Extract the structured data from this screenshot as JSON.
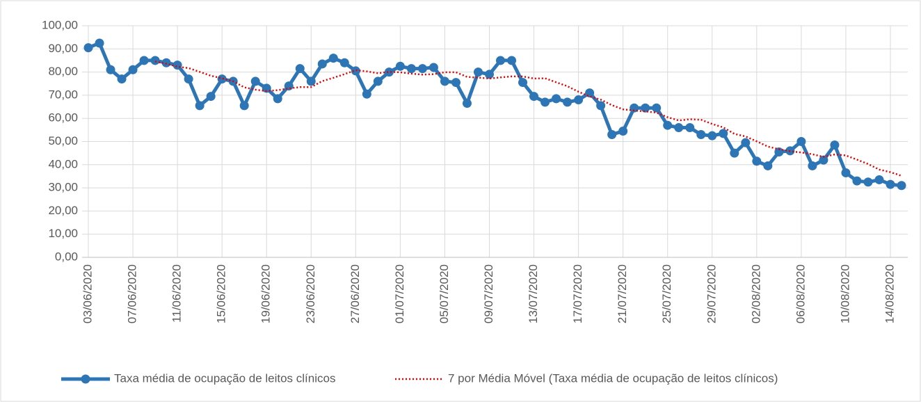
{
  "chart_data": {
    "type": "line",
    "categories": [
      "03/06/2020",
      null,
      null,
      null,
      "07/06/2020",
      null,
      null,
      null,
      "11/06/2020",
      null,
      null,
      null,
      "15/06/2020",
      null,
      null,
      null,
      "19/06/2020",
      null,
      null,
      null,
      "23/06/2020",
      null,
      null,
      null,
      "27/06/2020",
      null,
      null,
      null,
      "01/07/2020",
      null,
      null,
      null,
      "05/07/2020",
      null,
      null,
      null,
      "09/07/2020",
      null,
      null,
      null,
      "13/07/2020",
      null,
      null,
      null,
      "17/07/2020",
      null,
      null,
      null,
      "21/07/2020",
      null,
      null,
      null,
      "25/07/2020",
      null,
      null,
      null,
      "29/07/2020",
      null,
      null,
      null,
      "02/08/2020",
      null,
      null,
      null,
      "06/08/2020",
      null,
      null,
      null,
      "10/08/2020",
      null,
      null,
      null,
      "14/08/2020",
      null
    ],
    "series": [
      {
        "name": "Taxa média de ocupação de leitos clínicos",
        "color": "#2e75b6",
        "values": [
          90.5,
          92.5,
          81,
          77,
          81,
          85,
          85,
          84,
          83,
          77,
          65.5,
          69.5,
          77,
          76,
          65.5,
          76,
          73,
          68.5,
          74,
          81.5,
          76,
          83.5,
          86,
          84,
          80.5,
          70.5,
          76,
          80,
          82.5,
          81.5,
          81.5,
          82,
          76,
          75.5,
          66.5,
          80,
          79,
          85,
          85,
          75.5,
          69.5,
          67,
          68.5,
          67,
          68,
          71,
          65.5,
          53,
          54.5,
          64.5,
          64.5,
          64.5,
          57,
          56,
          56,
          53,
          52.5,
          53.5,
          45,
          49.5,
          41.5,
          39.5,
          45.5,
          46,
          50,
          39.5,
          42,
          48.5,
          36.5,
          33,
          32.5,
          33.5,
          31.5,
          31
        ]
      },
      {
        "name": "7 por Média Móvel (Taxa média de ocupação de leitos clínicos)",
        "color": "#e00000",
        "values": [
          null,
          null,
          null,
          null,
          null,
          null,
          84.6,
          83.6,
          82.3,
          81.7,
          80.1,
          78.4,
          77.3,
          76,
          73.4,
          72.4,
          71.8,
          72.2,
          72.9,
          73.5,
          73.5,
          76.1,
          77.5,
          79.1,
          80.8,
          80.3,
          79.5,
          80.1,
          79.9,
          79.3,
          78.9,
          79.1,
          79.9,
          79.9,
          77.9,
          77.6,
          77.2,
          77.7,
          78.1,
          78.1,
          77.2,
          77.3,
          75.6,
          73.9,
          71.5,
          69.5,
          68.1,
          65.7,
          63.9,
          63.4,
          63,
          62.5,
          60.5,
          59.1,
          59.6,
          59.4,
          57.6,
          56.1,
          53.3,
          52.2,
          50.1,
          47.8,
          46.7,
          45.8,
          45.3,
          44.5,
          43.4,
          44.4,
          44,
          42.2,
          40.3,
          37.9,
          36.8,
          35.2
        ]
      }
    ],
    "ylim": [
      0,
      100
    ],
    "yticks": [
      {
        "value": 0,
        "label": "0,00"
      },
      {
        "value": 10,
        "label": "10,00"
      },
      {
        "value": 20,
        "label": "20,00"
      },
      {
        "value": 30,
        "label": "30,00"
      },
      {
        "value": 40,
        "label": "40,00"
      },
      {
        "value": 50,
        "label": "50,00"
      },
      {
        "value": 60,
        "label": "60,00"
      },
      {
        "value": 70,
        "label": "70,00"
      },
      {
        "value": 80,
        "label": "80,00"
      },
      {
        "value": 90,
        "label": "90,00"
      },
      {
        "value": 100,
        "label": "100,00"
      }
    ],
    "grid": true
  }
}
